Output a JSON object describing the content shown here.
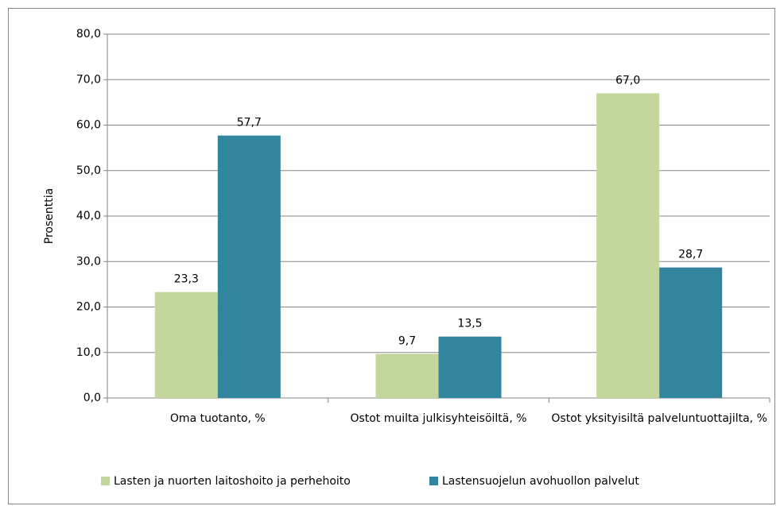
{
  "chart_data": {
    "type": "bar",
    "y_label": "Prosenttia",
    "categories": [
      "Oma tuotanto, %",
      "Ostot muilta julkisyhteisöiltä, %",
      "Ostot yksityisiltä palveluntuottajilta, %"
    ],
    "series": [
      {
        "name": "Lasten ja nuorten laitoshoito ja perhehoito",
        "color": "#c3d69b",
        "values": [
          23.3,
          9.7,
          67.0
        ],
        "value_labels": [
          "23,3",
          "9,7",
          "67,0"
        ]
      },
      {
        "name": "Lastensuojelun avohuollon palvelut",
        "color": "#31859c",
        "values": [
          57.7,
          13.5,
          28.7
        ],
        "value_labels": [
          "57,7",
          "13,5",
          "28,7"
        ]
      }
    ],
    "ylim": [
      0,
      80
    ],
    "yticks": [
      {
        "value": 0,
        "label": "0,0"
      },
      {
        "value": 10,
        "label": "10,0"
      },
      {
        "value": 20,
        "label": "20,0"
      },
      {
        "value": 30,
        "label": "30,0"
      },
      {
        "value": 40,
        "label": "40,0"
      },
      {
        "value": 50,
        "label": "50,0"
      },
      {
        "value": 60,
        "label": "60,0"
      },
      {
        "value": 70,
        "label": "70,0"
      },
      {
        "value": 80,
        "label": "80,0"
      }
    ],
    "grid": true,
    "legend": "bottom"
  }
}
